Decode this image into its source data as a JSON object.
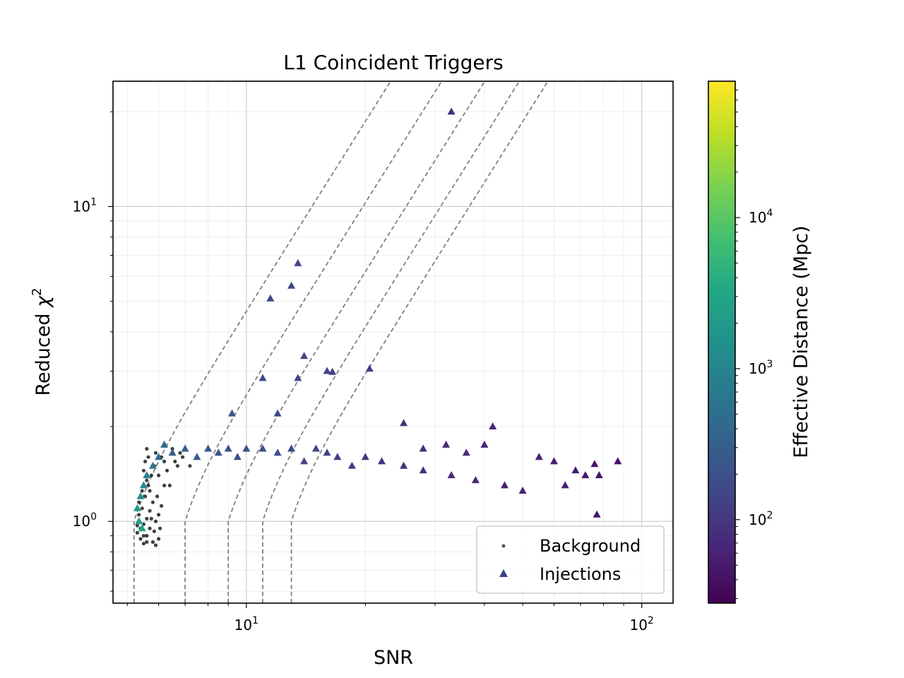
{
  "chart_data": {
    "type": "scatter",
    "title": "L1 Coincident Triggers",
    "xlabel": "SNR",
    "ylabel_text": "Reduced ",
    "ylabel_symbol": "χ",
    "ylabel_sup": "2",
    "xscale": "log",
    "yscale": "log",
    "xlim": [
      4.6,
      120
    ],
    "ylim": [
      0.55,
      25
    ],
    "grid": true,
    "legend_position": "lower-right",
    "x_ticks": [
      {
        "value": 10,
        "base": "10",
        "exp": "1"
      },
      {
        "value": 100,
        "base": "10",
        "exp": "2"
      }
    ],
    "y_ticks": [
      {
        "value": 1,
        "base": "10",
        "exp": "0"
      },
      {
        "value": 10,
        "base": "10",
        "exp": "1"
      }
    ],
    "colorbar": {
      "label": "Effective Distance (Mpc)",
      "scale": "log",
      "colormap": "viridis",
      "range": [
        28,
        80000
      ],
      "ticks": [
        {
          "value": 100,
          "base": "10",
          "exp": "2"
        },
        {
          "value": 1000,
          "base": "10",
          "exp": "3"
        },
        {
          "value": 10000,
          "base": "10",
          "exp": "4"
        }
      ]
    },
    "threshold_curves": [
      {
        "snr_at_chi_one": 5.2
      },
      {
        "snr_at_chi_one": 7.0
      },
      {
        "snr_at_chi_one": 9.0
      },
      {
        "snr_at_chi_one": 11.0
      },
      {
        "snr_at_chi_one": 13.0
      }
    ],
    "series": [
      {
        "name": "Background",
        "marker": "dot",
        "color": "#000000",
        "points": [
          [
            5.3,
            0.92
          ],
          [
            5.4,
            0.88
          ],
          [
            5.5,
            0.85
          ],
          [
            5.6,
            0.9
          ],
          [
            5.7,
            0.95
          ],
          [
            5.35,
            1.05
          ],
          [
            5.45,
            1.1
          ],
          [
            5.55,
            1.2
          ],
          [
            5.65,
            1.3
          ],
          [
            5.75,
            1.4
          ],
          [
            5.85,
            1.5
          ],
          [
            5.5,
            1.45
          ],
          [
            5.6,
            1.35
          ],
          [
            5.7,
            1.25
          ],
          [
            5.8,
            1.15
          ],
          [
            5.9,
            1.0
          ],
          [
            6.0,
            1.05
          ],
          [
            6.1,
            1.12
          ],
          [
            6.2,
            1.3
          ],
          [
            6.0,
            1.4
          ],
          [
            5.4,
            0.95
          ],
          [
            5.5,
            0.98
          ],
          [
            5.6,
            1.02
          ],
          [
            5.7,
            1.08
          ],
          [
            5.8,
            0.86
          ],
          [
            5.9,
            0.84
          ],
          [
            6.0,
            0.88
          ],
          [
            5.3,
            0.97
          ],
          [
            5.45,
            1.25
          ],
          [
            5.55,
            1.55
          ],
          [
            5.65,
            1.6
          ],
          [
            6.3,
            1.45
          ],
          [
            6.4,
            1.3
          ],
          [
            6.2,
            1.55
          ],
          [
            6.1,
            1.6
          ],
          [
            5.95,
            1.2
          ],
          [
            5.75,
            1.02
          ],
          [
            5.5,
            0.9
          ],
          [
            5.6,
            0.86
          ],
          [
            6.5,
            1.7
          ],
          [
            6.6,
            1.55
          ],
          [
            6.7,
            1.5
          ],
          [
            6.9,
            1.6
          ],
          [
            7.2,
            1.5
          ],
          [
            6.8,
            1.65
          ],
          [
            5.85,
            0.93
          ],
          [
            6.05,
            0.95
          ],
          [
            5.35,
            1.15
          ],
          [
            5.6,
            1.7
          ],
          [
            5.9,
            1.65
          ]
        ]
      },
      {
        "name": "Injections",
        "marker": "triangle",
        "color": "#3b518b",
        "points": [
          [
            33.0,
            20.0,
            80
          ],
          [
            13.5,
            6.6,
            150
          ],
          [
            13.0,
            5.6,
            140
          ],
          [
            11.5,
            5.1,
            160
          ],
          [
            14.0,
            3.35,
            150
          ],
          [
            16.0,
            3.0,
            140
          ],
          [
            16.5,
            2.98,
            130
          ],
          [
            13.5,
            2.85,
            150
          ],
          [
            20.5,
            3.05,
            110
          ],
          [
            11.0,
            2.85,
            170
          ],
          [
            9.2,
            2.2,
            220
          ],
          [
            12.0,
            2.2,
            170
          ],
          [
            25.0,
            2.05,
            90
          ],
          [
            42.0,
            2.0,
            70
          ],
          [
            40.0,
            1.75,
            70
          ],
          [
            32.0,
            1.75,
            75
          ],
          [
            28.0,
            1.7,
            80
          ],
          [
            36.0,
            1.65,
            75
          ],
          [
            55.0,
            1.6,
            60
          ],
          [
            60.0,
            1.55,
            55
          ],
          [
            87.0,
            1.55,
            40
          ],
          [
            76.0,
            1.52,
            45
          ],
          [
            72.0,
            1.4,
            50
          ],
          [
            78.0,
            1.4,
            45
          ],
          [
            68.0,
            1.45,
            50
          ],
          [
            64.0,
            1.3,
            55
          ],
          [
            77.0,
            1.05,
            45
          ],
          [
            50.0,
            1.25,
            60
          ],
          [
            45.0,
            1.3,
            60
          ],
          [
            38.0,
            1.35,
            70
          ],
          [
            33.0,
            1.4,
            75
          ],
          [
            28.0,
            1.45,
            80
          ],
          [
            25.0,
            1.5,
            85
          ],
          [
            22.0,
            1.55,
            90
          ],
          [
            20.0,
            1.6,
            100
          ],
          [
            18.5,
            1.5,
            110
          ],
          [
            17.0,
            1.6,
            120
          ],
          [
            16.0,
            1.65,
            130
          ],
          [
            15.0,
            1.7,
            140
          ],
          [
            14.0,
            1.55,
            150
          ],
          [
            13.0,
            1.7,
            160
          ],
          [
            12.0,
            1.65,
            170
          ],
          [
            11.0,
            1.7,
            180
          ],
          [
            10.0,
            1.7,
            200
          ],
          [
            9.5,
            1.6,
            210
          ],
          [
            9.0,
            1.7,
            220
          ],
          [
            8.5,
            1.65,
            240
          ],
          [
            8.0,
            1.7,
            260
          ],
          [
            7.5,
            1.6,
            280
          ],
          [
            7.0,
            1.7,
            300
          ],
          [
            6.5,
            1.65,
            350
          ],
          [
            6.2,
            1.75,
            400
          ],
          [
            6.0,
            1.6,
            500
          ],
          [
            5.8,
            1.5,
            700
          ],
          [
            5.6,
            1.4,
            900
          ],
          [
            5.5,
            1.3,
            1200
          ],
          [
            5.4,
            1.2,
            1500
          ],
          [
            5.3,
            1.1,
            2000
          ],
          [
            5.35,
            1.0,
            2500
          ],
          [
            5.45,
            0.95,
            3000
          ]
        ]
      }
    ]
  },
  "legend": {
    "entries": [
      {
        "label": "Background",
        "marker": "dot",
        "color": "#555555"
      },
      {
        "label": "Injections",
        "marker": "triangle",
        "color": "#3b3f8c"
      }
    ]
  }
}
